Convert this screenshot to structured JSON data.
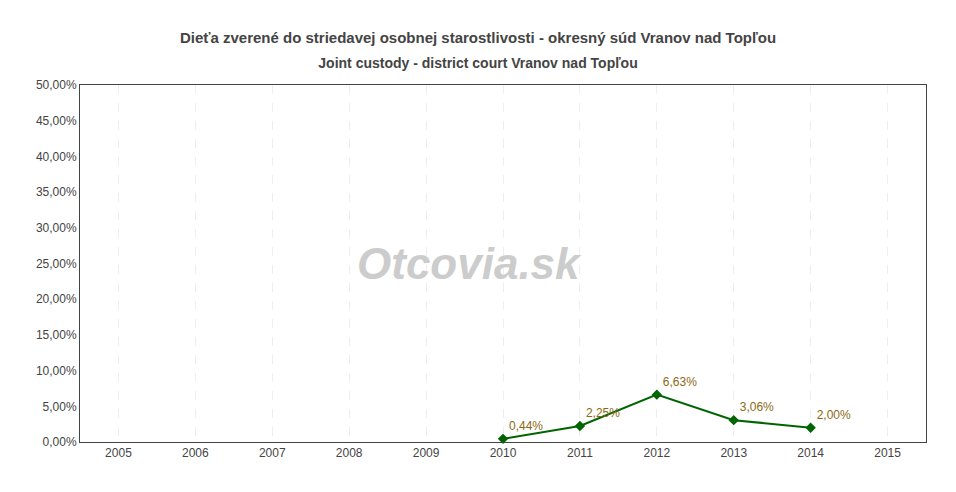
{
  "chart_data": {
    "type": "line",
    "title": "Dieťa zverené do striedavej osobnej starostlivosti - okresný súd Vranov nad Topľou",
    "subtitle": "Joint custody - district court Vranov nad Topľou",
    "x": [
      2010,
      2011,
      2012,
      2013,
      2014
    ],
    "values": [
      0.0044,
      0.0225,
      0.0663,
      0.0306,
      0.02
    ],
    "value_labels": [
      "0,44%",
      "2,25%",
      "6,63%",
      "3,06%",
      "2,00%"
    ],
    "data_labels": true,
    "color": "#006400",
    "marker": "diamond",
    "line_style": "solid",
    "annotations": [
      "Otcovia.sk"
    ],
    "xlim": [
      2004.5,
      2015.5
    ],
    "xticks": [
      2005,
      2006,
      2007,
      2008,
      2009,
      2010,
      2011,
      2012,
      2013,
      2014,
      2015
    ],
    "ylim": [
      0.0,
      0.5
    ],
    "yticks": [
      {
        "value": 0.0,
        "label": "0,00%"
      },
      {
        "value": 0.05,
        "label": "5,00%"
      },
      {
        "value": 0.1,
        "label": "10,00%"
      },
      {
        "value": 0.15,
        "label": "15,00%"
      },
      {
        "value": 0.2,
        "label": "20,00%"
      },
      {
        "value": 0.25,
        "label": "25,00%"
      },
      {
        "value": 0.3,
        "label": "30,00%"
      },
      {
        "value": 0.35,
        "label": "35,00%"
      },
      {
        "value": 0.4,
        "label": "40,00%"
      },
      {
        "value": 0.45,
        "label": "45,00%"
      },
      {
        "value": 0.5,
        "label": "50,00%"
      }
    ],
    "grid": "x"
  }
}
